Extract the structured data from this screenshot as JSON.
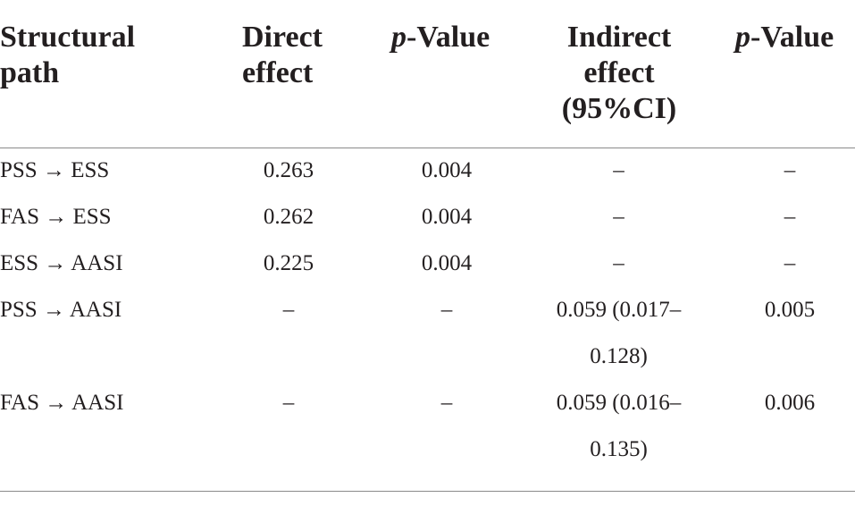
{
  "table": {
    "headers": [
      {
        "lines": [
          "Structural",
          "path"
        ]
      },
      {
        "lines": [
          "Direct",
          "effect"
        ]
      },
      {
        "italic": "p",
        "rest": "-Value"
      },
      {
        "lines": [
          "Indirect",
          "effect",
          "(95%CI)"
        ]
      },
      {
        "italic": "p",
        "rest": "-Value"
      }
    ],
    "rows": [
      {
        "path": "PSS → ESS",
        "direct": "0.263",
        "p1": "0.004",
        "indirect": [
          "–"
        ],
        "p2": "–"
      },
      {
        "path": "FAS → ESS",
        "direct": "0.262",
        "p1": "0.004",
        "indirect": [
          "–"
        ],
        "p2": "–"
      },
      {
        "path": "ESS → AASI",
        "direct": "0.225",
        "p1": "0.004",
        "indirect": [
          "–"
        ],
        "p2": "–"
      },
      {
        "path": "PSS → AASI",
        "direct": "–",
        "p1": "–",
        "indirect": [
          "0.059 (0.017–",
          "0.128)"
        ],
        "p2": "0.005"
      },
      {
        "path": "FAS → AASI",
        "direct": "–",
        "p1": "–",
        "indirect": [
          "0.059 (0.016–",
          "0.135)"
        ],
        "p2": "0.006"
      }
    ]
  }
}
